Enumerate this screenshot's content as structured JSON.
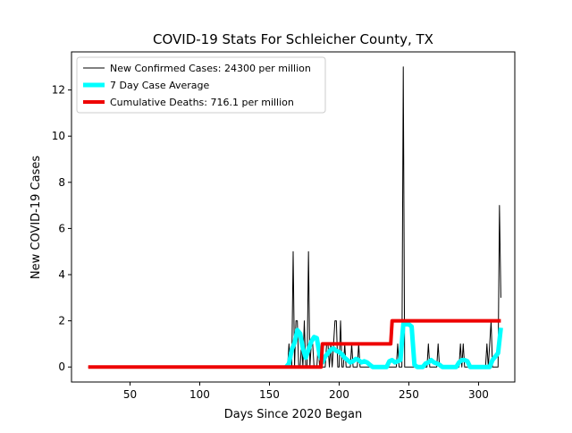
{
  "chart_data": {
    "type": "line",
    "title": "COVID-19 Stats For Schleicher County, TX",
    "xlabel": "Days Since 2020 Began",
    "ylabel": "New COVID-19 Cases",
    "xlim": [
      8,
      326
    ],
    "ylim": [
      -0.65,
      13.65
    ],
    "xticks": [
      50,
      100,
      150,
      200,
      250,
      300
    ],
    "yticks": [
      0,
      2,
      4,
      6,
      8,
      10,
      12
    ],
    "grid": false,
    "legend_position": "top-left",
    "series": [
      {
        "name": "New Confirmed Cases: 24300 per million",
        "color": "#000000",
        "x": [
          20,
          162,
          163,
          164,
          165,
          166,
          167,
          168,
          169,
          170,
          171,
          172,
          173,
          174,
          175,
          176,
          177,
          178,
          179,
          180,
          181,
          182,
          183,
          184,
          185,
          186,
          187,
          188,
          189,
          190,
          191,
          192,
          193,
          194,
          195,
          196,
          197,
          198,
          199,
          200,
          201,
          202,
          203,
          204,
          205,
          206,
          207,
          208,
          209,
          210,
          211,
          212,
          213,
          214,
          215,
          216,
          217,
          218,
          219,
          220,
          221,
          222,
          223,
          224,
          225,
          226,
          227,
          228,
          229,
          230,
          231,
          232,
          233,
          234,
          235,
          236,
          237,
          238,
          239,
          240,
          241,
          242,
          243,
          244,
          245,
          246,
          247,
          248,
          249,
          250,
          251,
          252,
          253,
          254,
          255,
          256,
          257,
          258,
          259,
          260,
          261,
          262,
          263,
          264,
          265,
          266,
          267,
          268,
          269,
          270,
          271,
          272,
          273,
          274,
          275,
          276,
          277,
          278,
          279,
          280,
          281,
          282,
          283,
          284,
          285,
          286,
          287,
          288,
          289,
          290,
          291,
          292,
          293,
          294,
          295,
          296,
          297,
          298,
          299,
          300,
          301,
          302,
          303,
          304,
          305,
          306,
          307,
          308,
          309,
          310,
          311,
          312,
          313,
          314,
          315,
          316
        ],
        "y": [
          0,
          0,
          0,
          1,
          0,
          0,
          5,
          0,
          2,
          2,
          0,
          0,
          1,
          0,
          2,
          0,
          0,
          5,
          0,
          1,
          1,
          0,
          0,
          0,
          1,
          0,
          0,
          0,
          0,
          0,
          1,
          1,
          0,
          1,
          0,
          1,
          2,
          2,
          0,
          0,
          2,
          0,
          0,
          1,
          0,
          0,
          0,
          0,
          1,
          0,
          0,
          0,
          0,
          1,
          0,
          0,
          0,
          0,
          0,
          0,
          0,
          0,
          0,
          0,
          0,
          0,
          0,
          0,
          0,
          0,
          0,
          0,
          0,
          0,
          0,
          0,
          0,
          0,
          0,
          0,
          0,
          1,
          0,
          0,
          0,
          13,
          0,
          0,
          0,
          0,
          0,
          0,
          0,
          0,
          0,
          0,
          0,
          0,
          0,
          0,
          0,
          0,
          0,
          1,
          0,
          0,
          0,
          0,
          0,
          0,
          1,
          0,
          0,
          0,
          0,
          0,
          0,
          0,
          0,
          0,
          0,
          0,
          0,
          0,
          0,
          0,
          1,
          0,
          1,
          0,
          0,
          0,
          0,
          0,
          0,
          0,
          0,
          0,
          0,
          0,
          0,
          0,
          0,
          0,
          0,
          1,
          0,
          1,
          2,
          0,
          0,
          0,
          0,
          0,
          7,
          3
        ],
        "width": 1
      },
      {
        "name": "7 Day Case Average",
        "color": "#00ffff",
        "x": [
          162,
          164,
          166,
          168,
          170,
          172,
          174,
          176,
          178,
          180,
          182,
          184,
          186,
          188,
          190,
          192,
          194,
          196,
          198,
          200,
          202,
          204,
          206,
          208,
          210,
          212,
          214,
          216,
          218,
          220,
          222,
          224,
          226,
          228,
          230,
          232,
          234,
          236,
          238,
          240,
          242,
          244,
          246,
          248,
          250,
          252,
          254,
          256,
          258,
          260,
          262,
          264,
          266,
          268,
          270,
          272,
          274,
          276,
          278,
          280,
          282,
          284,
          286,
          288,
          290,
          292,
          294,
          296,
          298,
          300,
          302,
          304,
          306,
          308,
          310,
          312,
          314,
          316
        ],
        "y": [
          0,
          0.15,
          0.75,
          1.05,
          1.6,
          1.45,
          0.8,
          0.4,
          0.75,
          1.1,
          1.3,
          1.25,
          0.5,
          0.2,
          0.45,
          0.6,
          0.75,
          0.8,
          0.7,
          0.65,
          0.55,
          0.4,
          0.3,
          0.2,
          0.25,
          0.35,
          0.3,
          0.2,
          0.25,
          0.2,
          0.1,
          0,
          0,
          0,
          0,
          0,
          0,
          0.25,
          0.3,
          0.2,
          0.25,
          0.3,
          1.85,
          1.85,
          1.85,
          1.75,
          0.1,
          0,
          0,
          0,
          0.15,
          0.2,
          0.3,
          0.2,
          0.15,
          0.1,
          0,
          0,
          0,
          0,
          0,
          0,
          0.2,
          0.3,
          0.3,
          0.25,
          0,
          0,
          0,
          0,
          0,
          0,
          0,
          0,
          0.3,
          0.45,
          0.6,
          1.7
        ],
        "width": 5
      },
      {
        "name": "Cumulative Deaths: 716.1 per million",
        "color": "#ee0000",
        "x": [
          20,
          187,
          188,
          237,
          238,
          316
        ],
        "y": [
          0,
          0,
          1,
          1,
          2,
          2
        ],
        "width": 4
      }
    ]
  }
}
